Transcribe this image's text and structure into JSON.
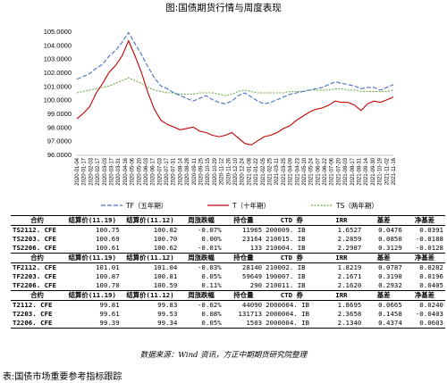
{
  "figure_title": "图:国债期货行情与周度表现",
  "chart_data": {
    "type": "line",
    "title": "图:国债期货行情与周度表现",
    "ylim": [
      96.0,
      105.0
    ],
    "y_ticks": [
      "96.0000",
      "97.0000",
      "98.0000",
      "99.0000",
      "100.0000",
      "101.0000",
      "102.0000",
      "103.0000",
      "104.0000",
      "105.0000"
    ],
    "grid": false,
    "legend_position": "bottom",
    "x": [
      "2020-01-04",
      "2020-01-16",
      "2020-01-30",
      "2020-02-13",
      "2020-02-27",
      "2020-03-12",
      "2020-03-26",
      "2020-04-09",
      "2020-04-23",
      "2020-05-08",
      "2020-05-22",
      "2020-06-05",
      "2020-06-19",
      "2020-07-03",
      "2020-07-17",
      "2020-07-31",
      "2020-08-14",
      "2020-08-28",
      "2020-09-11",
      "2020-09-25",
      "2020-10-09",
      "2020-10-23",
      "2020-11-06",
      "2020-11-20",
      "2020-12-04",
      "2020-12-18",
      "2021-01-01",
      "2021-01-15",
      "2021-01-29",
      "2021-02-12",
      "2021-02-26",
      "2021-03-12",
      "2021-03-26",
      "2021-04-09",
      "2021-04-23",
      "2021-05-07",
      "2021-05-21",
      "2021-06-04",
      "2021-06-18",
      "2021-07-02",
      "2021-07-16",
      "2021-07-30",
      "2021-08-13",
      "2021-08-27",
      "2021-09-10",
      "2021-09-24",
      "2021-10-08",
      "2021-10-22",
      "2021-11-05",
      "2021-11-19"
    ],
    "x_tick_labels": [
      "2020-01-04",
      "2020-01-17",
      "2020-02-03",
      "2020-02-17",
      "2020-03-03",
      "2020-03-17",
      "2020-03-31",
      "2020-04-16",
      "2020-05-06",
      "2020-05-20",
      "2020-06-03",
      "2020-06-17",
      "2020-07-03",
      "2020-07-17",
      "2020-07-31",
      "2020-08-14",
      "2020-08-28",
      "2020-09-11",
      "2020-09-25",
      "2020-10-15",
      "2020-10-29",
      "2020-11-12",
      "2020-11-26",
      "2020-12-10",
      "2020-12-24",
      "2021-01-08",
      "2021-01-22",
      "2021-02-05",
      "2021-02-25",
      "2021-03-11",
      "2021-03-25",
      "2021-04-09",
      "2021-04-23",
      "2021-05-10",
      "2021-05-24",
      "2021-06-07",
      "2021-06-22",
      "2021-07-06",
      "2021-07-20",
      "2021-08-03",
      "2021-08-17",
      "2021-08-31",
      "2021-09-14",
      "2021-09-30",
      "2021-10-19",
      "2021-11-02",
      "2021-11-16"
    ],
    "series": [
      {
        "name": "TF（五年期）",
        "color": "#4472C4",
        "dash": "long",
        "values": [
          101.5,
          101.7,
          101.9,
          102.3,
          102.6,
          103.2,
          103.6,
          104.2,
          104.9,
          104.1,
          103.3,
          102.4,
          101.6,
          101.0,
          100.8,
          100.5,
          100.3,
          100.1,
          99.9,
          100.1,
          100.3,
          100.0,
          99.8,
          99.7,
          99.9,
          100.3,
          100.5,
          100.2,
          99.9,
          99.7,
          99.8,
          100.0,
          100.2,
          100.4,
          100.5,
          100.6,
          100.7,
          100.8,
          100.9,
          101.1,
          101.3,
          101.2,
          101.1,
          101.0,
          100.8,
          100.9,
          100.9,
          100.7,
          100.9,
          101.1
        ]
      },
      {
        "name": "T（十年期）",
        "color": "#C00000",
        "dash": "solid",
        "values": [
          98.6,
          99.0,
          99.5,
          100.5,
          101.2,
          102.0,
          102.5,
          103.2,
          104.3,
          103.2,
          102.0,
          100.5,
          99.3,
          98.5,
          98.2,
          98.0,
          97.8,
          97.9,
          98.0,
          97.7,
          97.6,
          97.4,
          97.3,
          97.4,
          97.6,
          97.2,
          96.8,
          96.7,
          97.0,
          97.3,
          97.4,
          97.6,
          97.9,
          98.1,
          98.5,
          98.8,
          99.1,
          99.3,
          99.4,
          99.6,
          99.9,
          99.8,
          99.8,
          99.6,
          99.2,
          99.7,
          99.9,
          99.8,
          100.0,
          100.2
        ]
      },
      {
        "name": "TS（两年期）",
        "color": "#70AD47",
        "dash": "short",
        "values": [
          100.5,
          100.6,
          100.7,
          100.8,
          100.9,
          101.0,
          101.2,
          101.4,
          101.6,
          101.4,
          101.2,
          100.9,
          100.7,
          100.6,
          100.5,
          100.5,
          100.4,
          100.4,
          100.4,
          100.5,
          100.5,
          100.5,
          100.4,
          100.3,
          100.4,
          100.6,
          100.7,
          100.6,
          100.5,
          100.5,
          100.5,
          100.5,
          100.5,
          100.6,
          100.6,
          100.6,
          100.7,
          100.7,
          100.7,
          100.7,
          100.8,
          100.8,
          100.7,
          100.7,
          100.6,
          100.6,
          100.6,
          100.6,
          100.6,
          100.7
        ]
      }
    ]
  },
  "table": {
    "headers": [
      "合约",
      "结算价(11.19)",
      "结算价(11.12)",
      "周涨跌幅",
      "持仓量",
      "CTD 券",
      "IRR",
      "基差",
      "净基差"
    ],
    "groups": [
      [
        [
          "TS2112. CFE",
          "100.75",
          "100.82",
          "-0.07%",
          "11965",
          "200009. IB",
          "1.6527",
          "0.0476",
          "0.0391"
        ],
        [
          "TS2203. CFE",
          "100.69",
          "100.70",
          "0.00%",
          "23164",
          "210015. IB",
          "2.2859",
          "0.0850",
          "-0.0188"
        ],
        [
          "TS2206. CFE",
          "100.61",
          "100.62",
          "-0.01%",
          "133",
          "210004. IB",
          "2.2987",
          "0.3129",
          "-0.0128"
        ]
      ],
      [
        [
          "TF2112. CFE",
          "101.01",
          "101.04",
          "-0.03%",
          "28140",
          "210002. IB",
          "1.8219",
          "0.0787",
          "0.0282"
        ],
        [
          "TF2203. CFE",
          "100.87",
          "100.81",
          "0.05%",
          "59649",
          "190007. IB",
          "2.1671",
          "0.3190",
          "0.0196"
        ],
        [
          "TF2206. CFE",
          "100.70",
          "100.59",
          "0.11%",
          "290",
          "210011. IB",
          "2.1620",
          "0.2932",
          "0.0405"
        ]
      ],
      [
        [
          "T2112. CFE",
          "99.81",
          "99.83",
          "-0.02%",
          "44090",
          "2000004. IB",
          "1.8695",
          "0.0665",
          "0.0240"
        ],
        [
          "T2203. CFE",
          "99.61",
          "99.53",
          "0.08%",
          "131713",
          "2000004. IB",
          "2.3658",
          "0.1458",
          "-0.0403"
        ],
        [
          "T2206. CFE",
          "99.39",
          "99.34",
          "0.05%",
          "1503",
          "2000004. IB",
          "2.1340",
          "0.4374",
          "0.0603"
        ]
      ]
    ]
  },
  "source": "数据来源：Wind 资讯，方正中期期货研究院整理",
  "caption": "表:国债市场重要参考指标跟踪"
}
